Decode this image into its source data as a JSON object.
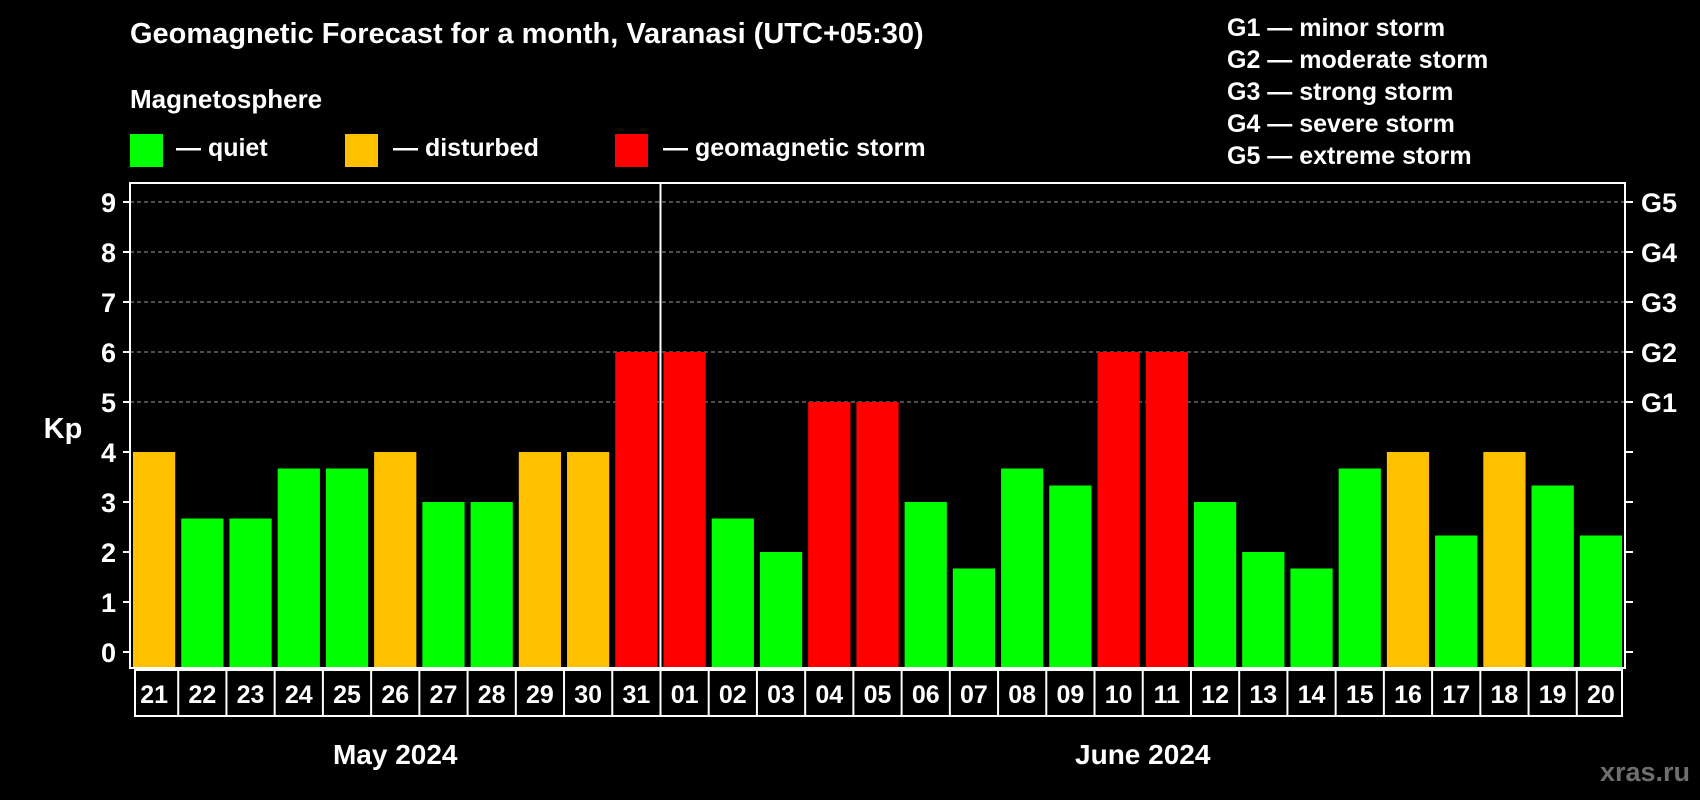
{
  "title": "Geomagnetic Forecast for a month, Varanasi (UTC+05:30)",
  "magnetosphere_label": "Magnetosphere",
  "legend": [
    {
      "label": "— quiet",
      "color": "#00ff00"
    },
    {
      "label": "— disturbed",
      "color": "#ffc000"
    },
    {
      "label": "— geomagnetic storm",
      "color": "#ff0000"
    }
  ],
  "g_scale": [
    "G1 — minor storm",
    "G2 — moderate storm",
    "G3 — strong storm",
    "G4 — severe storm",
    "G5 — extreme storm"
  ],
  "watermark": "xras.ru",
  "colors": {
    "quiet": "#00ff00",
    "disturbed": "#ffc000",
    "storm": "#ff0000",
    "background": "#000000",
    "axis": "#ffffff",
    "grid": "#9a9a9a"
  },
  "chart_data": {
    "type": "bar",
    "title": "Geomagnetic Forecast for a month, Varanasi (UTC+05:30)",
    "ylabel": "Kp",
    "ylim": [
      0,
      9
    ],
    "yticks": [
      0,
      1,
      2,
      3,
      4,
      5,
      6,
      7,
      8,
      9
    ],
    "right_axis": [
      {
        "kp": 5,
        "label": "G1"
      },
      {
        "kp": 6,
        "label": "G2"
      },
      {
        "kp": 7,
        "label": "G3"
      },
      {
        "kp": 8,
        "label": "G4"
      },
      {
        "kp": 9,
        "label": "G5"
      }
    ],
    "categories": [
      "21",
      "22",
      "23",
      "24",
      "25",
      "26",
      "27",
      "28",
      "29",
      "30",
      "31",
      "01",
      "02",
      "03",
      "04",
      "05",
      "06",
      "07",
      "08",
      "09",
      "10",
      "11",
      "12",
      "13",
      "14",
      "15",
      "16",
      "17",
      "18",
      "19",
      "20"
    ],
    "values": [
      4,
      2.67,
      2.67,
      3.67,
      3.67,
      4,
      3,
      3,
      4,
      4,
      6,
      6,
      2.67,
      2,
      5,
      5,
      3,
      1.67,
      3.67,
      3.33,
      6,
      6,
      3,
      2,
      1.67,
      3.67,
      4,
      2.33,
      4,
      3.33,
      2.33
    ],
    "status": [
      "disturbed",
      "quiet",
      "quiet",
      "quiet",
      "quiet",
      "disturbed",
      "quiet",
      "quiet",
      "disturbed",
      "disturbed",
      "storm",
      "storm",
      "quiet",
      "quiet",
      "storm",
      "storm",
      "quiet",
      "quiet",
      "quiet",
      "quiet",
      "storm",
      "storm",
      "quiet",
      "quiet",
      "quiet",
      "quiet",
      "disturbed",
      "quiet",
      "disturbed",
      "quiet",
      "quiet"
    ],
    "months": [
      {
        "label": "May 2024",
        "start": 0,
        "count": 11
      },
      {
        "label": "June 2024",
        "start": 11,
        "count": 20
      }
    ],
    "grid": true
  }
}
